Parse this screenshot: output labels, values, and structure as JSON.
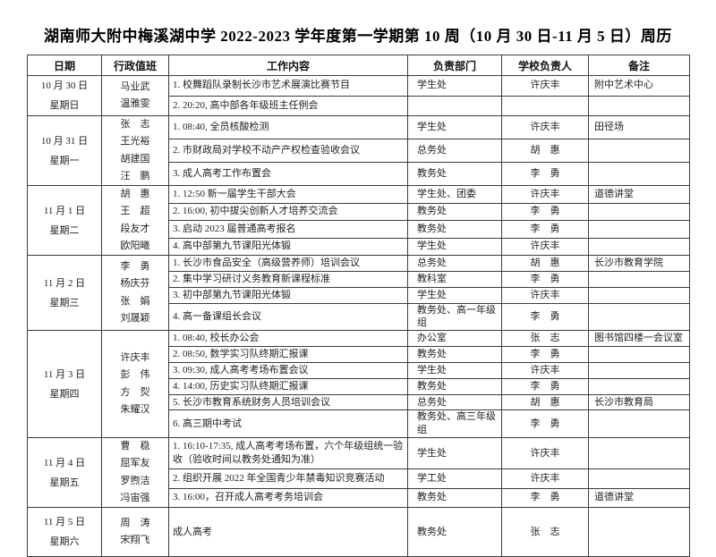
{
  "title": "湖南师大附中梅溪湖中学 2022-2023 学年度第一学期第 10 周（10 月 30 日-11 月 5 日）周历",
  "table": {
    "headers": [
      "日期",
      "行政值班",
      "工作内容",
      "负责部门",
      "学校负责人",
      "备注"
    ],
    "days": [
      {
        "date": "10 月 30 日",
        "weekday": "星期日",
        "duty": [
          "马业武",
          "温雅雯"
        ],
        "items": [
          {
            "content": "1. 校舞蹈队录制长沙市艺术展演比赛节目",
            "dept": "学生处",
            "leader": "许庆丰",
            "note": "附中艺术中心"
          },
          {
            "content": "2. 20:20, 高中部各年级班主任例会",
            "dept": "",
            "leader": "",
            "note": ""
          }
        ]
      },
      {
        "date": "10 月 31 日",
        "weekday": "星期一",
        "duty": [
          "张　志",
          "王光裕",
          "胡建国",
          "汪　鹏"
        ],
        "items": [
          {
            "content": "1. 08:40, 全员核酸检测",
            "dept": "学生处",
            "leader": "许庆丰",
            "note": "田径场"
          },
          {
            "content": "2. 市财政局对学校不动产产权检查验收会议",
            "dept": "总务处",
            "leader": "胡　惠",
            "note": ""
          },
          {
            "content": "3. 成人高考工作布置会",
            "dept": "教务处",
            "leader": "李　勇",
            "note": ""
          }
        ]
      },
      {
        "date": "11 月 1 日",
        "weekday": "星期二",
        "duty": [
          "胡　惠",
          "王　超",
          "段友才",
          "欧阳曦"
        ],
        "items": [
          {
            "content": "1. 12:50 新一届学生干部大会",
            "dept": "学生处、团委",
            "leader": "许庆丰",
            "note": "道德讲堂"
          },
          {
            "content": "2. 16:00, 初中拔尖创新人才培养交流会",
            "dept": "教务处",
            "leader": "李　勇",
            "note": ""
          },
          {
            "content": "3. 启动 2023 届普通高考报名",
            "dept": "教务处",
            "leader": "李　勇",
            "note": ""
          },
          {
            "content": "4. 高中部第九节课阳光体锻",
            "dept": "学生处",
            "leader": "许庆丰",
            "note": ""
          }
        ]
      },
      {
        "date": "11 月 2 日",
        "weekday": "星期三",
        "duty": [
          "李　勇",
          "杨庆芬",
          "张　娟",
          "刘晟颖"
        ],
        "items": [
          {
            "content": "1. 长沙市食品安全（高级营养师）培训会议",
            "dept": "总务处",
            "leader": "胡　惠",
            "note": "长沙市教育学院"
          },
          {
            "content": "2. 集中学习研讨义务教育新课程标准",
            "dept": "教科室",
            "leader": "李　勇",
            "note": ""
          },
          {
            "content": "3. 初中部第九节课阳光体锻",
            "dept": "学生处",
            "leader": "许庆丰",
            "note": ""
          },
          {
            "content": "4. 高一备课组长会议",
            "dept": "教务处、高一年级组",
            "leader": "李　勇",
            "note": ""
          }
        ]
      },
      {
        "date": "11 月 3 日",
        "weekday": "星期四",
        "duty": [
          "许庆丰",
          "彭　伟",
          "方　烮",
          "朱耀汉"
        ],
        "items": [
          {
            "content": "1. 08:40, 校长办公会",
            "dept": "办公室",
            "leader": "张　志",
            "note": "图书馆四楼一会议室"
          },
          {
            "content": "2. 08:50, 数学实习队终期汇报课",
            "dept": "教务处",
            "leader": "李　勇",
            "note": ""
          },
          {
            "content": "3. 09:30, 成人高考考场布置会议",
            "dept": "学生处",
            "leader": "许庆丰",
            "note": ""
          },
          {
            "content": "4. 14:00, 历史实习队终期汇报课",
            "dept": "教务处",
            "leader": "李　勇",
            "note": ""
          },
          {
            "content": "5. 长沙市教育系统财务人员培训会议",
            "dept": "总务处",
            "leader": "胡　惠",
            "note": "长沙市教育局"
          },
          {
            "content": "6. 高三期中考试",
            "dept": "教务处、高三年级组",
            "leader": "李　勇",
            "note": ""
          }
        ]
      },
      {
        "date": "11 月 4 日",
        "weekday": "星期五",
        "duty": [
          "曹　稳",
          "屈军友",
          "罗煦洁",
          "冯宙强"
        ],
        "items": [
          {
            "content": "1. 16:10-17:35, 成人高考考场布置，六个年级组统一验收（验收时间以教务处通知为准）",
            "dept": "学生处",
            "leader": "许庆丰",
            "note": ""
          },
          {
            "content": "2. 组织开展 2022 年全国青少年禁毒知识竞赛活动",
            "dept": "学工处",
            "leader": "许庆丰",
            "note": ""
          },
          {
            "content": "3. 16:00，召开成人高考考务培训会",
            "dept": "教务处",
            "leader": "李　勇",
            "note": "道德讲堂"
          }
        ]
      },
      {
        "date": "11 月 5 日",
        "weekday": "星期六",
        "duty": [
          "周　涛",
          "宋翔飞"
        ],
        "items": [
          {
            "content": "成人高考",
            "dept": "教务处",
            "leader": "张　志",
            "note": ""
          }
        ]
      }
    ]
  }
}
